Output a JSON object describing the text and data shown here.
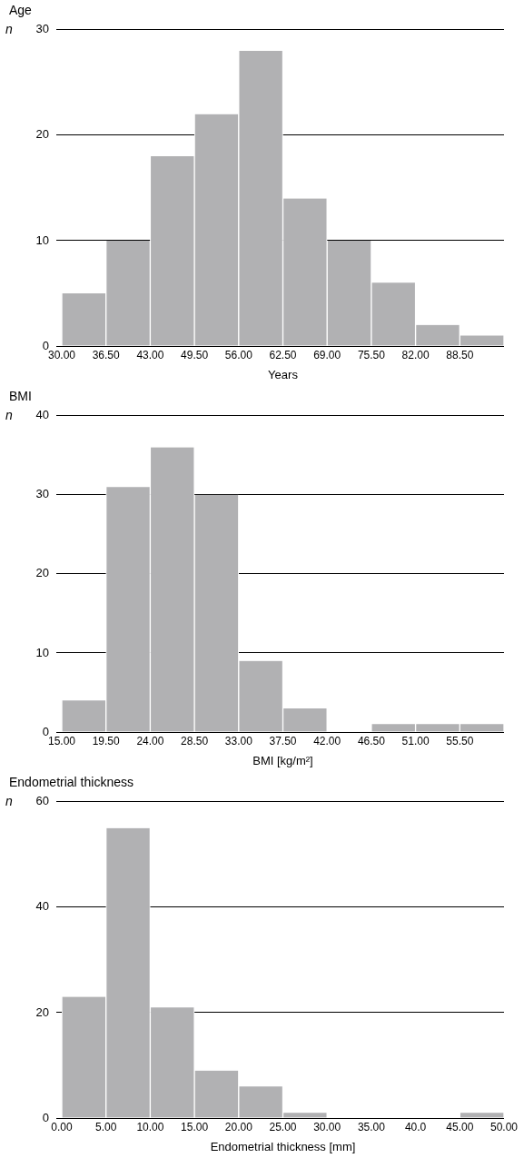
{
  "chart_data": [
    {
      "type": "histogram",
      "title": "Age",
      "xlabel": "Years",
      "ylabel": "n",
      "bins": [
        30,
        36.5,
        43,
        49.5,
        56,
        62.5,
        69,
        75.5,
        82,
        88.5,
        95
      ],
      "values": [
        5,
        10,
        18,
        22,
        28,
        14,
        10,
        6,
        2,
        1
      ],
      "color": "#b1b1b3",
      "xlim": [
        30,
        95
      ],
      "xticks": [
        {
          "value": 30,
          "label": "30.00"
        },
        {
          "value": 36.5,
          "label": "36.50"
        },
        {
          "value": 43,
          "label": "43.00"
        },
        {
          "value": 49.5,
          "label": "49.50"
        },
        {
          "value": 56,
          "label": "56.00"
        },
        {
          "value": 62.5,
          "label": "62.50"
        },
        {
          "value": 69,
          "label": "69.00"
        },
        {
          "value": 75.5,
          "label": "75.50"
        },
        {
          "value": 82,
          "label": "82.00"
        },
        {
          "value": 88.5,
          "label": "88.50"
        }
      ],
      "ylim": [
        0,
        30
      ],
      "yticks": [
        0,
        10,
        20,
        30
      ],
      "grid": "y"
    },
    {
      "type": "histogram",
      "title": "BMI",
      "xlabel": "BMI [kg/m²]",
      "ylabel": "n",
      "bins": [
        15,
        19.5,
        24,
        28.5,
        33,
        37.5,
        42,
        46.5,
        51,
        55.5,
        60
      ],
      "values": [
        4,
        31,
        36,
        30,
        9,
        3,
        0,
        1,
        1,
        1
      ],
      "color": "#b1b1b3",
      "xlim": [
        15,
        60
      ],
      "xticks": [
        {
          "value": 15,
          "label": "15.00"
        },
        {
          "value": 19.5,
          "label": "19.50"
        },
        {
          "value": 24,
          "label": "24.00"
        },
        {
          "value": 28.5,
          "label": "28.50"
        },
        {
          "value": 33,
          "label": "33.00"
        },
        {
          "value": 37.5,
          "label": "37.50"
        },
        {
          "value": 42,
          "label": "42.00"
        },
        {
          "value": 46.5,
          "label": "46.50"
        },
        {
          "value": 51,
          "label": "51.00"
        },
        {
          "value": 55.5,
          "label": "55.50"
        }
      ],
      "ylim": [
        0,
        40
      ],
      "yticks": [
        0,
        10,
        20,
        30,
        40
      ],
      "grid": "y"
    },
    {
      "type": "histogram",
      "title": "Endometrial thickness",
      "xlabel": "Endometrial thickness [mm]",
      "ylabel": "n",
      "bins": [
        0,
        5,
        10,
        15,
        20,
        25,
        30,
        35,
        40,
        45,
        50
      ],
      "values": [
        23,
        55,
        21,
        9,
        6,
        1,
        0,
        0,
        0,
        1
      ],
      "color": "#b1b1b3",
      "xlim": [
        0,
        50
      ],
      "xticks": [
        {
          "value": 0,
          "label": "0.00"
        },
        {
          "value": 5,
          "label": "5.00"
        },
        {
          "value": 10,
          "label": "10.00"
        },
        {
          "value": 15,
          "label": "15.00"
        },
        {
          "value": 20,
          "label": "20.00"
        },
        {
          "value": 25,
          "label": "25.00"
        },
        {
          "value": 30,
          "label": "30.00"
        },
        {
          "value": 35,
          "label": "35.00"
        },
        {
          "value": 40,
          "label": "40.0"
        },
        {
          "value": 45,
          "label": "45.00"
        },
        {
          "value": 50,
          "label": "50.00"
        }
      ],
      "ylim": [
        0,
        60
      ],
      "yticks": [
        0,
        20,
        40,
        60
      ],
      "grid": "y"
    }
  ]
}
